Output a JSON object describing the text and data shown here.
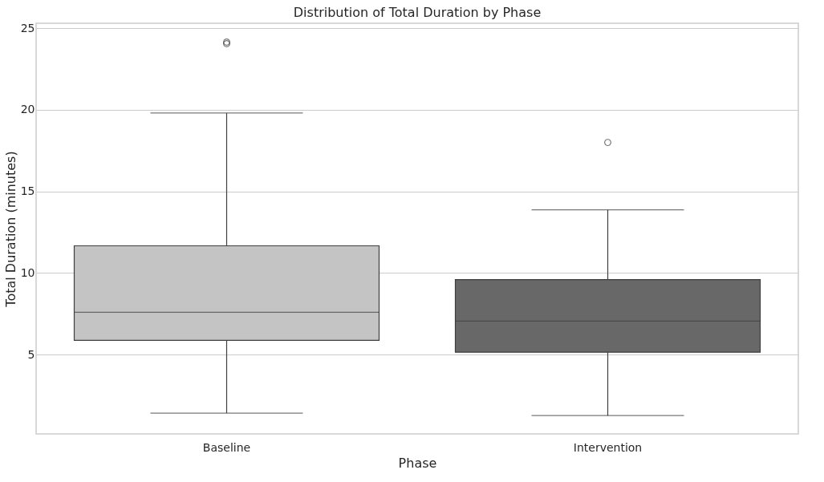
{
  "chart_data": {
    "type": "box",
    "title": "Distribution of Total Duration by Phase",
    "xlabel": "Phase",
    "ylabel": "Total Duration (minutes)",
    "categories": [
      "Baseline",
      "Intervention"
    ],
    "colors": [
      "#c4c4c4",
      "#686868"
    ],
    "boxes": [
      {
        "low": 1.42,
        "q1": 5.88,
        "median": 7.6,
        "q3": 11.67,
        "high": 19.8,
        "outliers": [
          24.15,
          24.05
        ]
      },
      {
        "low": 1.27,
        "q1": 5.15,
        "median": 7.06,
        "q3": 9.6,
        "high": 13.87,
        "outliers": [
          18.0
        ]
      }
    ],
    "ylim": [
      0.15,
      25.3
    ],
    "yticks": [
      5,
      10,
      15,
      20,
      25
    ],
    "grid": "y"
  }
}
